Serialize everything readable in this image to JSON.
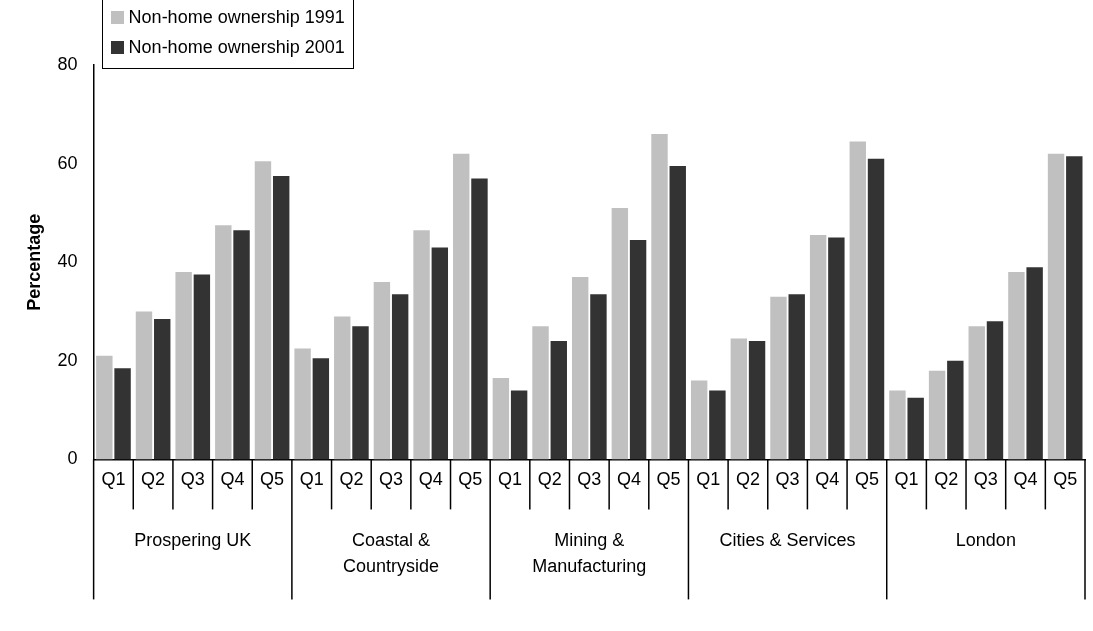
{
  "chart_data": {
    "type": "bar",
    "ylabel": "Percentage",
    "categories": [
      "Q1",
      "Q2",
      "Q3",
      "Q4",
      "Q5",
      "Q1",
      "Q2",
      "Q3",
      "Q4",
      "Q5",
      "Q1",
      "Q2",
      "Q3",
      "Q4",
      "Q5",
      "Q1",
      "Q2",
      "Q3",
      "Q4",
      "Q5",
      "Q1",
      "Q2",
      "Q3",
      "Q4",
      "Q5"
    ],
    "annotations": [
      "Prospering UK",
      "Coastal & Countryside",
      "Mining & Manufacturing",
      "Cities & Services",
      "London"
    ],
    "series": [
      {
        "name": "Non-home ownership 1991",
        "color": "#c0c0c0",
        "values": [
          21,
          30,
          38,
          47.5,
          60.5,
          22.5,
          29,
          36,
          46.5,
          62,
          16.5,
          27,
          37,
          51,
          66,
          16,
          24.5,
          33,
          45.5,
          64.5,
          14,
          18,
          27,
          38,
          62
        ]
      },
      {
        "name": "Non-home ownership 2001",
        "color": "#333333",
        "values": [
          18.5,
          28.5,
          37.5,
          46.5,
          57.5,
          20.5,
          27,
          33.5,
          43,
          57,
          14,
          24,
          33.5,
          44.5,
          59.5,
          14,
          24,
          33.5,
          45,
          61,
          12.5,
          20,
          28,
          39,
          61.5
        ]
      }
    ],
    "ylim": [
      0,
      80
    ],
    "yticks": [
      0,
      20,
      40,
      60,
      80
    ],
    "grid": false,
    "legend": "top left"
  }
}
